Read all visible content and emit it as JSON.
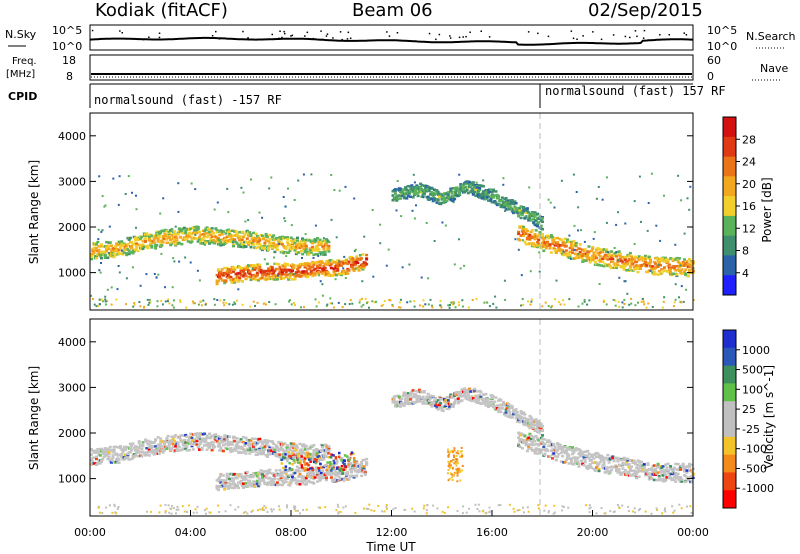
{
  "header": {
    "station": "Kodiak (fitACF)",
    "beam": "Beam 06",
    "date": "02/Sep/2015"
  },
  "summary_panels": {
    "nsky_label": "N.Sky",
    "nsky_ticks": [
      "10^5",
      "10^0"
    ],
    "nsearch_label": "N.Search",
    "nsearch_ticks": [
      "10^5",
      "10^0"
    ],
    "freq_label_line1": "Freq.",
    "freq_label_line2": "[MHz]",
    "freq_ticks": [
      "18",
      "8"
    ],
    "nave_label": "Nave",
    "nave_ticks": [
      "60",
      "0"
    ],
    "cpid_label": "CPID",
    "cpid_segments": [
      {
        "text": "normalsound (fast) -157 RF",
        "start_hour": 0
      },
      {
        "text": "normalsound (fast) 157 RF",
        "start_hour": 18
      }
    ],
    "change_marker_hour": 18
  },
  "colors": {
    "power_scale": [
      "#2020ff",
      "#2b63a8",
      "#3f8f6e",
      "#5cb25a",
      "#f2cf2a",
      "#f2a81e",
      "#ec7418",
      "#e03a14",
      "#d41010"
    ],
    "velocity_scale": [
      "#ff0000",
      "#ee4411",
      "#f58a1c",
      "#f2c42a",
      "#c0c0c0",
      "#c0c0c0",
      "#5fc04a",
      "#3e8f5c",
      "#2b58b8",
      "#1f2fcf"
    ]
  },
  "chart_data": [
    {
      "type": "heatmap",
      "name": "power",
      "ylabel": "Slant Range [km]",
      "ylim": [
        180,
        4500
      ],
      "yticks": [
        1000,
        2000,
        3000,
        4000
      ],
      "xlim": [
        0,
        24
      ],
      "colorbar": {
        "label": "Power [dB]",
        "ticks": [
          "28",
          "24",
          "20",
          "16",
          "12",
          "8",
          "4"
        ],
        "range": [
          0,
          32
        ]
      },
      "features": [
        {
          "desc": "main band",
          "t0": 0.0,
          "t1": 9.5,
          "range_km": [
            1500,
            1550,
            1700,
            1800,
            1850,
            1800,
            1750,
            1650,
            1600,
            1600
          ],
          "width_km": 230,
          "peak_db": 18
        },
        {
          "desc": "near range patch",
          "t0": 5.0,
          "t1": 11.0,
          "range_km": [
            950,
            1000,
            1050,
            1050,
            1100,
            1150,
            1300
          ],
          "width_km": 220,
          "peak_db": 26
        },
        {
          "desc": "evening band",
          "t0": 17.0,
          "t1": 24.0,
          "range_km": [
            1900,
            1700,
            1550,
            1400,
            1300,
            1200,
            1150,
            1150
          ],
          "width_km": 250,
          "peak_db": 22
        },
        {
          "desc": "far arc",
          "t0": 12.0,
          "t1": 18.0,
          "range_km": [
            2700,
            2850,
            2650,
            2900,
            2700,
            2400,
            2100
          ],
          "width_km": 180,
          "peak_db": 10
        }
      ]
    },
    {
      "type": "heatmap",
      "name": "velocity",
      "ylabel": "Slant Range [km]",
      "ylim": [
        180,
        4500
      ],
      "yticks": [
        1000,
        2000,
        3000,
        4000
      ],
      "xlim": [
        0,
        24
      ],
      "xticks": [
        "00:00",
        "04:00",
        "08:00",
        "12:00",
        "16:00",
        "20:00",
        "00:00"
      ],
      "xlabel": "Time UT",
      "colorbar": {
        "label": "Velocity [m s^-1]",
        "ticks": [
          "1000",
          "500",
          "100",
          "25",
          "-25",
          "-100",
          "-500",
          "-1000"
        ]
      },
      "features": [
        {
          "desc": "ground scatter band",
          "t0": 0.0,
          "t1": 24.0,
          "mostly": "grey"
        },
        {
          "desc": "mixed velocities near 08-10 UT",
          "t0": 7.5,
          "t1": 10.5,
          "range_km": [
            1200,
            1600
          ],
          "mostly": "orange/green"
        },
        {
          "desc": "orange feature",
          "t0": 14.2,
          "t1": 14.8,
          "range_km": [
            950,
            1700
          ],
          "mostly": "orange"
        }
      ]
    }
  ]
}
